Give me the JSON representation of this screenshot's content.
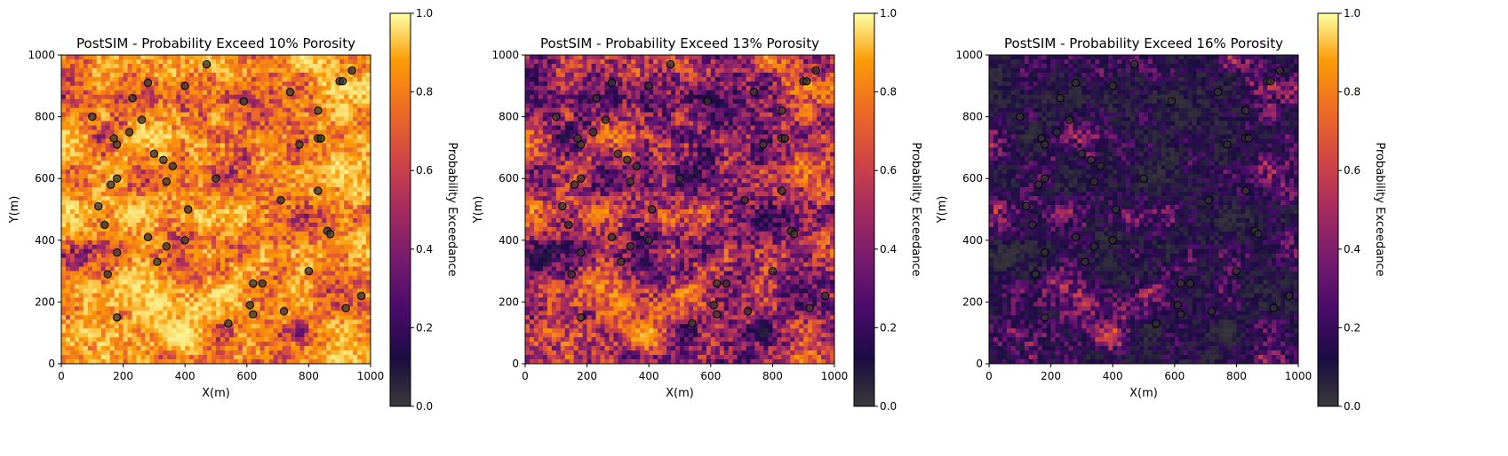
{
  "chart_data": [
    {
      "type": "heatmap",
      "title": "PostSIM - Probability Exceed 10% Porosity",
      "xlabel": "X(m)",
      "ylabel": "Y(m)",
      "xlim": [
        0,
        1000
      ],
      "ylim": [
        0,
        1000
      ],
      "xticks": [
        "0",
        "200",
        "400",
        "600",
        "800",
        "1000"
      ],
      "yticks": [
        "0",
        "200",
        "400",
        "600",
        "800",
        "1000"
      ],
      "colormap": "inferno",
      "colorbar": {
        "label": "Probability Exceedance",
        "range": [
          0.0,
          1.0
        ],
        "ticks": [
          "0.0",
          "0.2",
          "0.4",
          "0.6",
          "0.8",
          "1.0"
        ]
      },
      "mean_probability": 0.85,
      "grid": false
    },
    {
      "type": "heatmap",
      "title": "PostSIM - Probability Exceed 13% Porosity",
      "xlabel": "X(m)",
      "ylabel": "Y(m)",
      "xlim": [
        0,
        1000
      ],
      "ylim": [
        0,
        1000
      ],
      "xticks": [
        "0",
        "200",
        "400",
        "600",
        "800",
        "1000"
      ],
      "yticks": [
        "0",
        "200",
        "400",
        "600",
        "800",
        "1000"
      ],
      "colormap": "inferno",
      "colorbar": {
        "label": "Probability Exceedance",
        "range": [
          0.0,
          1.0
        ],
        "ticks": [
          "0.0",
          "0.2",
          "0.4",
          "0.6",
          "0.8",
          "1.0"
        ]
      },
      "mean_probability": 0.5,
      "grid": false
    },
    {
      "type": "heatmap",
      "title": "PostSIM - Probability Exceed 16% Porosity",
      "xlabel": "X(m)",
      "ylabel": "Y(m)",
      "xlim": [
        0,
        1000
      ],
      "ylim": [
        0,
        1000
      ],
      "xticks": [
        "0",
        "200",
        "400",
        "600",
        "800",
        "1000"
      ],
      "yticks": [
        "0",
        "200",
        "400",
        "600",
        "800",
        "1000"
      ],
      "colormap": "inferno",
      "colorbar": {
        "label": "Probability Exceedance",
        "range": [
          0.0,
          1.0
        ],
        "ticks": [
          "0.0",
          "0.2",
          "0.4",
          "0.6",
          "0.8",
          "1.0"
        ]
      },
      "mean_probability": 0.15,
      "grid": false
    }
  ],
  "wells": {
    "x": [
      470,
      280,
      400,
      590,
      740,
      900,
      910,
      940,
      100,
      830,
      180,
      170,
      220,
      260,
      230,
      300,
      340,
      360,
      500,
      160,
      120,
      180,
      710,
      830,
      410,
      860,
      870,
      140,
      280,
      400,
      340,
      180,
      310,
      800,
      150,
      620,
      650,
      610,
      720,
      920,
      970,
      540,
      620,
      180,
      770,
      830,
      840,
      330
    ],
    "y": [
      970,
      910,
      900,
      850,
      880,
      915,
      915,
      950,
      800,
      820,
      710,
      730,
      750,
      790,
      860,
      680,
      590,
      640,
      600,
      580,
      510,
      600,
      530,
      560,
      500,
      430,
      420,
      450,
      410,
      400,
      380,
      360,
      330,
      300,
      290,
      260,
      260,
      190,
      170,
      180,
      220,
      130,
      160,
      150,
      710,
      730,
      730,
      660
    ]
  }
}
